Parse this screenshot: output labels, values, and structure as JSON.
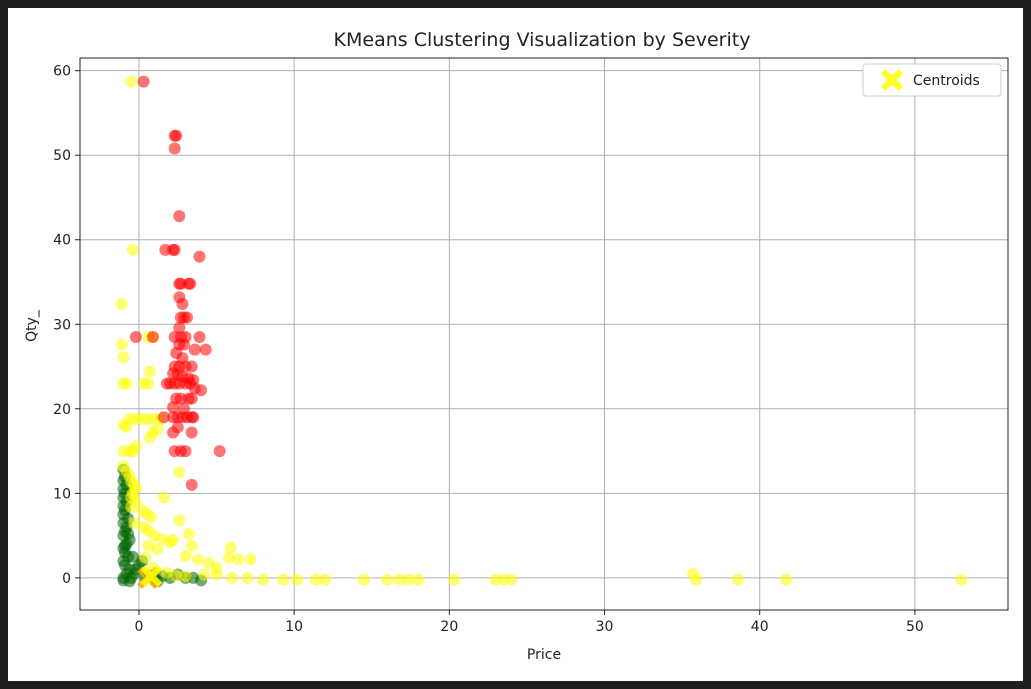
{
  "colors": {
    "red": "#ff0000",
    "yellow": "#ffff00",
    "green": "#006400",
    "centroid_yellow": "#ffff00",
    "centroid_orange": "#ffa500",
    "grid": "#b0b0b0"
  },
  "chart_data": {
    "type": "scatter",
    "title": "KMeans Clustering Visualization by Severity",
    "xlabel": "Price",
    "ylabel": "Qty_",
    "xlim": [
      -3.8,
      56
    ],
    "ylim": [
      -3.8,
      61.5
    ],
    "xticks": [
      0,
      10,
      20,
      30,
      40,
      50
    ],
    "yticks": [
      0,
      10,
      20,
      30,
      40,
      50,
      60
    ],
    "grid": true,
    "legend": {
      "placement": "top-right",
      "entries": [
        "Centroids"
      ]
    },
    "series": [
      {
        "color": "green",
        "points": [
          [
            -1.0,
            0
          ],
          [
            -0.8,
            0.5
          ],
          [
            -0.6,
            1
          ],
          [
            -0.9,
            1.5
          ],
          [
            -1.0,
            2
          ],
          [
            -0.7,
            2.5
          ],
          [
            -0.9,
            3
          ],
          [
            -1.0,
            3.5
          ],
          [
            -0.8,
            4
          ],
          [
            -0.6,
            4.5
          ],
          [
            -1.0,
            5
          ],
          [
            -0.9,
            5.5
          ],
          [
            -0.8,
            6
          ],
          [
            -1.0,
            6.5
          ],
          [
            -0.7,
            7
          ],
          [
            -1.0,
            7.5
          ],
          [
            -0.9,
            8
          ],
          [
            -1.0,
            8.5
          ],
          [
            -0.8,
            9
          ],
          [
            -1.0,
            9.5
          ],
          [
            -0.9,
            10
          ],
          [
            -1.0,
            10.5
          ],
          [
            -0.8,
            11
          ],
          [
            -1.0,
            11.5
          ],
          [
            -0.9,
            12
          ],
          [
            -1.0,
            12.8
          ],
          [
            -0.5,
            0
          ],
          [
            -0.3,
            0.5
          ],
          [
            -0.2,
            1
          ],
          [
            0.0,
            1.5
          ],
          [
            0.2,
            2
          ],
          [
            -0.4,
            2.5
          ],
          [
            0.4,
            0
          ],
          [
            0.7,
            0.3
          ],
          [
            1.0,
            0
          ],
          [
            1.5,
            0.2
          ],
          [
            2.0,
            0
          ],
          [
            2.5,
            0.4
          ],
          [
            3.0,
            0
          ],
          [
            3.5,
            0
          ],
          [
            4.0,
            -0.3
          ],
          [
            1.2,
            -0.4
          ],
          [
            -0.6,
            -0.4
          ],
          [
            -1.0,
            -0.3
          ],
          [
            -0.9,
            3.8
          ],
          [
            -0.7,
            5.2
          ]
        ]
      },
      {
        "color": "yellow",
        "points": [
          [
            -0.5,
            58.7
          ],
          [
            -0.4,
            38.8
          ],
          [
            -1.1,
            32.4
          ],
          [
            -1.1,
            27.6
          ],
          [
            -1.0,
            26.1
          ],
          [
            -1.0,
            23.0
          ],
          [
            -0.8,
            23.0
          ],
          [
            0.3,
            23.0
          ],
          [
            0.6,
            23.0
          ],
          [
            0.7,
            24.4
          ],
          [
            0.6,
            28.5
          ],
          [
            0.9,
            28.5
          ],
          [
            -1.0,
            18.1
          ],
          [
            -0.8,
            17.9
          ],
          [
            -0.6,
            18.8
          ],
          [
            -0.2,
            18.8
          ],
          [
            0.2,
            18.8
          ],
          [
            0.6,
            18.8
          ],
          [
            1.0,
            18.8
          ],
          [
            1.4,
            18.8
          ],
          [
            0.7,
            16.6
          ],
          [
            0.9,
            17.2
          ],
          [
            1.2,
            17.6
          ],
          [
            -1.0,
            15.0
          ],
          [
            -0.6,
            15.0
          ],
          [
            -0.4,
            15.0
          ],
          [
            -0.2,
            15.6
          ],
          [
            -1.0,
            13.2
          ],
          [
            -0.8,
            12.6
          ],
          [
            -0.6,
            12.0
          ],
          [
            -0.5,
            11.4
          ],
          [
            -0.3,
            11.0
          ],
          [
            -0.2,
            10.5
          ],
          [
            -0.4,
            10.0
          ],
          [
            -0.5,
            9.5
          ],
          [
            -0.2,
            9.0
          ],
          [
            -0.5,
            8.4
          ],
          [
            0.2,
            8.0
          ],
          [
            0.5,
            7.6
          ],
          [
            0.8,
            7.2
          ],
          [
            -0.3,
            6.5
          ],
          [
            0.3,
            6.0
          ],
          [
            0.6,
            5.6
          ],
          [
            1.0,
            5.0
          ],
          [
            1.5,
            4.6
          ],
          [
            2.0,
            4.2
          ],
          [
            0.6,
            3.8
          ],
          [
            1.2,
            3.4
          ],
          [
            1.6,
            9.5
          ],
          [
            2.6,
            6.8
          ],
          [
            2.6,
            12.5
          ],
          [
            2.2,
            4.5
          ],
          [
            3.2,
            5.2
          ],
          [
            3.4,
            3.8
          ],
          [
            3.0,
            2.6
          ],
          [
            3.8,
            2.2
          ],
          [
            4.5,
            1.8
          ],
          [
            5.0,
            1.2
          ],
          [
            5.9,
            3.6
          ],
          [
            5.8,
            2.4
          ],
          [
            6.4,
            2.2
          ],
          [
            7.2,
            2.2
          ],
          [
            5.0,
            0.4
          ],
          [
            6.0,
            0.0
          ],
          [
            7.0,
            0.0
          ],
          [
            8.0,
            -0.2
          ],
          [
            9.3,
            -0.2
          ],
          [
            10.2,
            -0.2
          ],
          [
            11.4,
            -0.2
          ],
          [
            12.0,
            -0.2
          ],
          [
            14.5,
            -0.2
          ],
          [
            16.0,
            -0.2
          ],
          [
            16.8,
            -0.2
          ],
          [
            17.4,
            -0.2
          ],
          [
            18.0,
            -0.2
          ],
          [
            20.3,
            -0.2
          ],
          [
            23.0,
            -0.2
          ],
          [
            23.5,
            -0.2
          ],
          [
            24.0,
            -0.2
          ],
          [
            35.7,
            0.5
          ],
          [
            35.9,
            -0.2
          ],
          [
            38.6,
            -0.2
          ],
          [
            41.7,
            -0.2
          ],
          [
            53.0,
            -0.2
          ],
          [
            4.2,
            0.4
          ],
          [
            3.0,
            0.2
          ],
          [
            2.4,
            0.3
          ],
          [
            1.8,
            0.6
          ],
          [
            0.9,
            1.2
          ],
          [
            0.4,
            2.4
          ]
        ]
      },
      {
        "color": "red",
        "points": [
          [
            0.3,
            58.7
          ],
          [
            2.3,
            52.3
          ],
          [
            2.4,
            52.3
          ],
          [
            2.3,
            50.8
          ],
          [
            2.6,
            42.8
          ],
          [
            1.7,
            38.8
          ],
          [
            2.2,
            38.8
          ],
          [
            2.3,
            38.8
          ],
          [
            3.9,
            38.0
          ],
          [
            2.6,
            34.8
          ],
          [
            2.7,
            34.8
          ],
          [
            3.2,
            34.8
          ],
          [
            3.3,
            34.8
          ],
          [
            2.6,
            33.2
          ],
          [
            2.8,
            32.4
          ],
          [
            2.7,
            30.8
          ],
          [
            2.9,
            30.8
          ],
          [
            3.1,
            30.8
          ],
          [
            2.6,
            29.6
          ],
          [
            2.7,
            28.5
          ],
          [
            2.3,
            28.5
          ],
          [
            3.0,
            28.5
          ],
          [
            3.9,
            28.5
          ],
          [
            2.6,
            27.6
          ],
          [
            2.9,
            27.6
          ],
          [
            3.6,
            27.0
          ],
          [
            4.3,
            27.0
          ],
          [
            2.4,
            26.6
          ],
          [
            2.8,
            26.0
          ],
          [
            2.3,
            25.0
          ],
          [
            2.6,
            25.0
          ],
          [
            3.0,
            25.0
          ],
          [
            3.4,
            25.0
          ],
          [
            2.2,
            24.2
          ],
          [
            2.5,
            24.0
          ],
          [
            2.8,
            23.8
          ],
          [
            3.2,
            23.6
          ],
          [
            3.5,
            23.4
          ],
          [
            2.3,
            23.0
          ],
          [
            1.8,
            23.0
          ],
          [
            2.0,
            23.0
          ],
          [
            2.6,
            23.0
          ],
          [
            3.0,
            23.0
          ],
          [
            3.3,
            23.0
          ],
          [
            3.6,
            22.4
          ],
          [
            4.0,
            22.2
          ],
          [
            2.4,
            21.2
          ],
          [
            2.7,
            21.2
          ],
          [
            3.2,
            21.2
          ],
          [
            3.4,
            21.2
          ],
          [
            1.6,
            19.0
          ],
          [
            2.2,
            19.0
          ],
          [
            2.5,
            19.0
          ],
          [
            2.8,
            19.0
          ],
          [
            3.1,
            19.0
          ],
          [
            3.4,
            19.0
          ],
          [
            3.5,
            19.0
          ],
          [
            2.5,
            17.8
          ],
          [
            2.2,
            17.2
          ],
          [
            3.4,
            17.2
          ],
          [
            2.3,
            15.0
          ],
          [
            2.7,
            15.0
          ],
          [
            3.0,
            15.0
          ],
          [
            5.2,
            15.0
          ],
          [
            3.4,
            11.0
          ],
          [
            -0.2,
            28.5
          ],
          [
            0.9,
            28.5
          ],
          [
            2.2,
            20.2
          ],
          [
            2.9,
            20.0
          ]
        ]
      }
    ],
    "centroids": [
      {
        "x": 0.6,
        "y": 0.0,
        "color": "centroid_orange"
      },
      {
        "x": 0.8,
        "y": 0.2,
        "color": "centroid_yellow"
      }
    ]
  }
}
